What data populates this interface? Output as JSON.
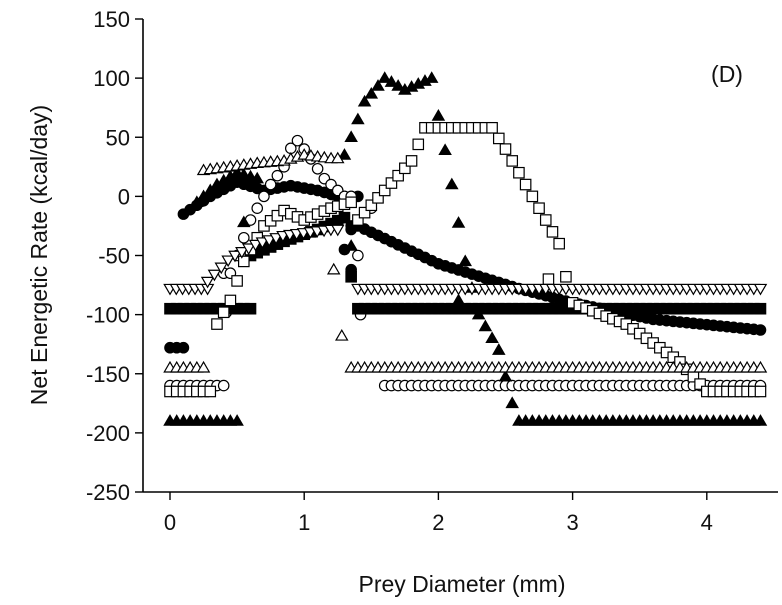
{
  "chart_data": {
    "type": "scatter",
    "title": "",
    "panel_label": "(D)",
    "xlabel": "Prey Diameter (mm)",
    "ylabel": "Net Energetic Rate (kcal/day)",
    "xlim": [
      -0.2,
      4.5
    ],
    "ylim": [
      -250,
      150
    ],
    "xticks": [
      0,
      1,
      2,
      3,
      4
    ],
    "yticks": [
      -250,
      -200,
      -150,
      -100,
      -50,
      0,
      50,
      100,
      150
    ],
    "grid": false,
    "legend": "none",
    "colors": {
      "marker": "#000000",
      "hollow_fill": "#ffffff"
    },
    "series": [
      {
        "marker": "filled-circle",
        "segments": [
          {
            "x_range": [
              0.0,
              0.1
            ],
            "y": -128
          },
          {
            "x_range": [
              0.1,
              1.4
            ],
            "ramp": [
              [
                0.1,
                -15
              ],
              [
                0.3,
                0
              ],
              [
                0.5,
                12
              ],
              [
                0.7,
                5
              ],
              [
                0.9,
                9
              ],
              [
                1.1,
                5
              ],
              [
                1.25,
                0
              ]
            ]
          },
          {
            "x_range": [
              1.35,
              4.4
            ],
            "decay": [
              [
                1.4,
                -25
              ],
              [
                2.0,
                -57
              ],
              [
                2.6,
                -78
              ],
              [
                3.0,
                -90
              ],
              [
                3.6,
                -104
              ],
              [
                4.4,
                -113
              ]
            ]
          }
        ],
        "extras": [
          {
            "x": 1.3,
            "y": -45
          },
          {
            "x": 1.35,
            "y": -62
          },
          {
            "x": 1.35,
            "y": -28
          }
        ]
      },
      {
        "marker": "hollow-circle",
        "segments": [
          {
            "x_range": [
              0.0,
              0.4
            ],
            "y": -160
          },
          {
            "x_range": [
              0.4,
              1.35
            ],
            "ramp": [
              [
                0.45,
                -65
              ],
              [
                0.6,
                -20
              ],
              [
                0.75,
                10
              ],
              [
                0.85,
                25
              ],
              [
                0.93,
                50
              ],
              [
                1.0,
                40
              ],
              [
                1.15,
                15
              ],
              [
                1.3,
                0
              ]
            ]
          },
          {
            "x_range": [
              1.6,
              4.4
            ],
            "y": -160
          }
        ],
        "extras": [
          {
            "x": 0.42,
            "y": -98
          },
          {
            "x": 1.4,
            "y": -50
          },
          {
            "x": 1.5,
            "y": -10
          },
          {
            "x": 1.42,
            "y": -100
          }
        ]
      },
      {
        "marker": "filled-square",
        "segments": [
          {
            "x_range": [
              0.0,
              0.6
            ],
            "y": -95
          },
          {
            "x_range": [
              0.6,
              1.3
            ],
            "ramp": [
              [
                0.6,
                -50
              ],
              [
                0.85,
                -38
              ],
              [
                1.1,
                -28
              ],
              [
                1.3,
                -18
              ]
            ]
          },
          {
            "x_range": [
              1.4,
              4.4
            ],
            "y": -95
          }
        ],
        "extras": [
          {
            "x": 1.35,
            "y": -68
          }
        ]
      },
      {
        "marker": "hollow-square",
        "segments": [
          {
            "x_range": [
              0.0,
              0.3
            ],
            "y": -165
          },
          {
            "x_range": [
              0.35,
              1.35
            ],
            "ramp": [
              [
                0.35,
                -108
              ],
              [
                0.45,
                -88
              ],
              [
                0.55,
                -55
              ],
              [
                0.7,
                -25
              ],
              [
                0.85,
                -12
              ],
              [
                1.0,
                -20
              ],
              [
                1.2,
                -10
              ],
              [
                1.35,
                -5
              ]
            ]
          },
          {
            "x_range": [
              1.4,
              2.9
            ],
            "ramp": [
              [
                1.4,
                -20
              ],
              [
                1.6,
                5
              ],
              [
                1.8,
                30
              ],
              [
                1.9,
                58
              ],
              [
                2.4,
                58
              ],
              [
                2.5,
                40
              ],
              [
                2.65,
                10
              ],
              [
                2.8,
                -20
              ],
              [
                2.9,
                -40
              ]
            ]
          },
          {
            "x_range": [
              3.0,
              4.4
            ],
            "ramp": [
              [
                3.0,
                -90
              ],
              [
                3.4,
                -108
              ],
              [
                3.8,
                -140
              ],
              [
                4.0,
                -165
              ],
              [
                4.4,
                -165
              ]
            ]
          }
        ],
        "extras": [
          {
            "x": 2.95,
            "y": -68
          },
          {
            "x": 2.82,
            "y": -70
          }
        ]
      },
      {
        "marker": "filled-triangle",
        "segments": [
          {
            "x_range": [
              0.0,
              0.5
            ],
            "y": -190
          },
          {
            "x_range": [
              0.2,
              0.65
            ],
            "ramp": [
              [
                0.2,
                -5
              ],
              [
                0.35,
                10
              ],
              [
                0.5,
                20
              ],
              [
                0.65,
                15
              ]
            ]
          },
          {
            "x_range": [
              1.3,
              1.95
            ],
            "ramp": [
              [
                1.3,
                35
              ],
              [
                1.45,
                80
              ],
              [
                1.6,
                100
              ],
              [
                1.75,
                90
              ],
              [
                1.95,
                100
              ]
            ]
          },
          {
            "x_range": [
              2.0,
              2.55
            ],
            "ramp": [
              [
                2.0,
                68
              ],
              [
                2.1,
                10
              ],
              [
                2.2,
                -55
              ],
              [
                2.3,
                -100
              ],
              [
                2.45,
                -130
              ],
              [
                2.55,
                -175
              ]
            ]
          },
          {
            "x_range": [
              2.6,
              4.4
            ],
            "y": -190
          }
        ],
        "extras": [
          {
            "x": 0.55,
            "y": -22
          },
          {
            "x": 1.35,
            "y": -42
          },
          {
            "x": 2.15,
            "y": -88
          }
        ]
      },
      {
        "marker": "hollow-triangle",
        "segments": [
          {
            "x_range": [
              0.0,
              0.25
            ],
            "y": -145
          },
          {
            "x_range": [
              0.25,
              1.25
            ],
            "ramp": [
              [
                0.25,
                22
              ],
              [
                0.45,
                25
              ],
              [
                0.65,
                28
              ],
              [
                0.85,
                30
              ],
              [
                1.0,
                35
              ],
              [
                1.2,
                32
              ]
            ]
          },
          {
            "x_range": [
              1.35,
              4.4
            ],
            "y": -145
          }
        ],
        "extras": [
          {
            "x": 1.22,
            "y": -62
          },
          {
            "x": 1.28,
            "y": -118
          }
        ]
      },
      {
        "marker": "hollow-inverted-triangle",
        "segments": [
          {
            "x_range": [
              0.0,
              0.28
            ],
            "y": -78
          },
          {
            "x_range": [
              0.28,
              1.25
            ],
            "ramp": [
              [
                0.28,
                -72
              ],
              [
                0.45,
                -52
              ],
              [
                0.65,
                -40
              ],
              [
                0.85,
                -33
              ],
              [
                1.05,
                -30
              ],
              [
                1.2,
                -28
              ]
            ]
          },
          {
            "x_range": [
              1.4,
              4.4
            ],
            "y": -78
          }
        ],
        "extras": []
      }
    ]
  }
}
